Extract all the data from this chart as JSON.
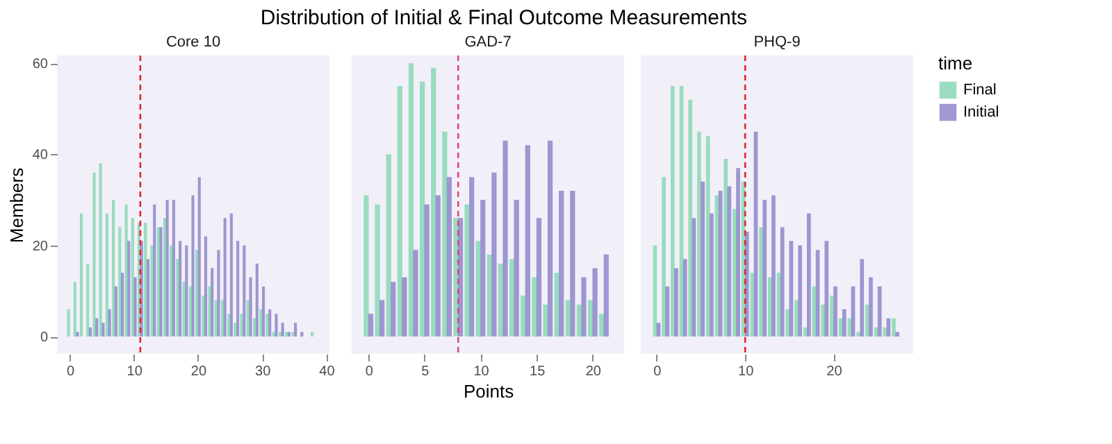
{
  "chart_data": [
    {
      "type": "bar",
      "title": "Core 10",
      "ylabel": "Members",
      "legend_title": "time",
      "legend": "right",
      "annotations": [
        "Distribution of Initial & Final Outcome Measurements"
      ],
      "x": [
        0,
        1,
        2,
        3,
        4,
        5,
        6,
        7,
        8,
        9,
        10,
        11,
        12,
        13,
        14,
        15,
        16,
        17,
        18,
        19,
        20,
        21,
        22,
        23,
        24,
        25,
        26,
        27,
        28,
        29,
        30,
        31,
        32,
        33,
        34,
        35,
        36,
        37,
        38
      ],
      "series": [
        {
          "name": "Final",
          "color": "#88d8b4",
          "values": [
            6,
            12,
            27,
            16,
            36,
            38,
            27,
            30,
            24,
            29,
            26,
            25,
            25,
            20,
            24,
            26,
            20,
            17,
            12,
            11,
            19,
            9,
            11,
            8,
            8,
            5,
            3,
            5,
            8,
            4,
            6,
            5,
            1,
            1,
            1,
            1,
            0,
            0,
            1
          ]
        },
        {
          "name": "Initial",
          "color": "#8f86ca",
          "values": [
            0,
            1,
            0,
            2,
            4,
            3,
            6,
            11,
            14,
            21,
            13,
            21,
            17,
            29,
            24,
            30,
            30,
            21,
            20,
            31,
            35,
            22,
            15,
            19,
            26,
            27,
            21,
            20,
            13,
            16,
            11,
            6,
            5,
            3,
            1,
            3,
            1,
            0,
            0
          ]
        }
      ],
      "xlim": [
        -2,
        40.5
      ],
      "xticks": [
        0,
        10,
        20,
        30,
        40
      ],
      "ylim": [
        -3.8,
        61.7
      ],
      "yticks": [
        0,
        20,
        40,
        60
      ],
      "ref_lines": [
        {
          "axis": "x",
          "value": 11,
          "color": "#e0242a",
          "line_style": "dashed"
        }
      ],
      "grid": false
    },
    {
      "type": "bar",
      "title": "GAD-7",
      "xlabel": "Points",
      "x": [
        0,
        1,
        2,
        3,
        4,
        5,
        6,
        7,
        8,
        9,
        10,
        11,
        12,
        13,
        14,
        15,
        16,
        17,
        18,
        19,
        20,
        21
      ],
      "series": [
        {
          "name": "Final",
          "color": "#88d8b4",
          "values": [
            31,
            29,
            40,
            55,
            60,
            56,
            59,
            45,
            26,
            29,
            21,
            18,
            16,
            17,
            9,
            13,
            7,
            14,
            8,
            7,
            8,
            5
          ]
        },
        {
          "name": "Initial",
          "color": "#8f86ca",
          "values": [
            5,
            8,
            12,
            13,
            19,
            29,
            31,
            35,
            26,
            35,
            30,
            36,
            43,
            30,
            42,
            26,
            43,
            32,
            32,
            13,
            15,
            18
          ]
        }
      ],
      "xlim": [
        -1.5,
        22.8
      ],
      "xticks": [
        0,
        5,
        10,
        15,
        20
      ],
      "ylim": [
        -3.8,
        61.7
      ],
      "tick_labels": "x",
      "ref_lines": [
        {
          "axis": "x",
          "value": 8,
          "color": "#e8407a",
          "line_style": "dashed"
        }
      ],
      "grid": false
    },
    {
      "type": "bar",
      "title": "PHQ-9",
      "x": [
        0,
        1,
        2,
        3,
        4,
        5,
        6,
        7,
        8,
        9,
        10,
        11,
        12,
        13,
        14,
        15,
        16,
        17,
        18,
        19,
        20,
        21,
        22,
        23,
        24,
        25,
        26,
        27
      ],
      "series": [
        {
          "name": "Final",
          "color": "#88d8b4",
          "values": [
            20,
            35,
            55,
            55,
            52,
            45,
            44,
            31,
            39,
            28,
            34,
            14,
            24,
            13,
            14,
            6,
            8,
            2,
            11,
            7,
            9,
            4,
            4,
            1,
            7,
            2,
            2,
            4
          ]
        },
        {
          "name": "Initial",
          "color": "#8f86ca",
          "values": [
            3,
            11,
            15,
            17,
            26,
            34,
            27,
            32,
            33,
            37,
            23,
            45,
            30,
            31,
            24,
            21,
            20,
            27,
            19,
            21,
            11,
            6,
            11,
            17,
            13,
            11,
            4,
            1
          ]
        }
      ],
      "xlim": [
        -1.8,
        29
      ],
      "xticks": [
        0,
        10,
        20
      ],
      "ylim": [
        -3.8,
        61.7
      ],
      "tick_labels": "x",
      "ref_lines": [
        {
          "axis": "x",
          "value": 10,
          "color": "#e0242a",
          "line_style": "dashed"
        }
      ],
      "grid": false
    }
  ]
}
